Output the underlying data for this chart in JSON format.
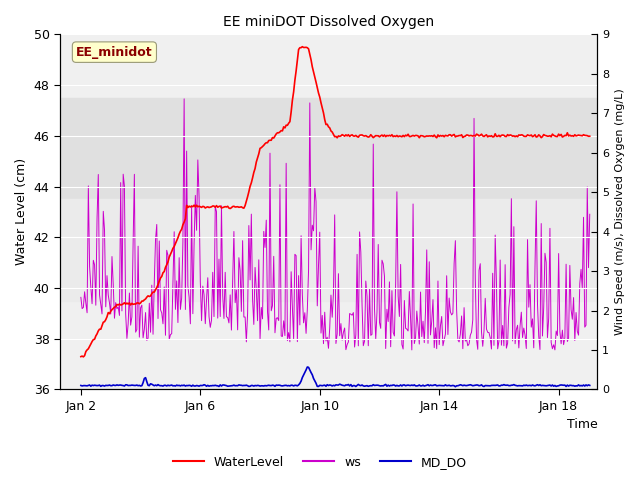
{
  "title": "EE miniDOT Dissolved Oxygen",
  "xlabel": "Time",
  "ylabel_left": "Water Level (cm)",
  "ylabel_right": "Wind Speed (m/s), Dissolved Oxygen (mg/L)",
  "ylim_left": [
    36,
    50
  ],
  "ylim_right": [
    0.0,
    9.0
  ],
  "yticks_left": [
    36,
    38,
    40,
    42,
    44,
    46,
    48,
    50
  ],
  "yticks_right": [
    0.0,
    1.0,
    2.0,
    3.0,
    4.0,
    5.0,
    6.0,
    7.0,
    8.0,
    9.0
  ],
  "xlim_days": [
    1.3,
    19.3
  ],
  "xtick_days": [
    2,
    6,
    10,
    14,
    18
  ],
  "xtick_labels": [
    "Jan 2",
    "Jan 6",
    "Jan 10",
    "Jan 14",
    "Jan 18"
  ],
  "bg_color": "#f0f0f0",
  "band1_ylim": [
    43.5,
    47.5
  ],
  "band1_color": "#e0e0e0",
  "band2_ylim": [
    39.5,
    43.5
  ],
  "band2_color": "#ebebeb",
  "annotation_label": "EE_minidot",
  "annotation_box_color": "#ffffcc",
  "annotation_text_color": "#8b0000",
  "legend_labels": [
    "WaterLevel",
    "ws",
    "MD_DO"
  ],
  "water_level_color": "#ff0000",
  "ws_color": "#cc00cc",
  "md_do_color": "#0000cc",
  "legend_ws_color": "#cc44cc",
  "legend_md_do_color": "#0000ff"
}
